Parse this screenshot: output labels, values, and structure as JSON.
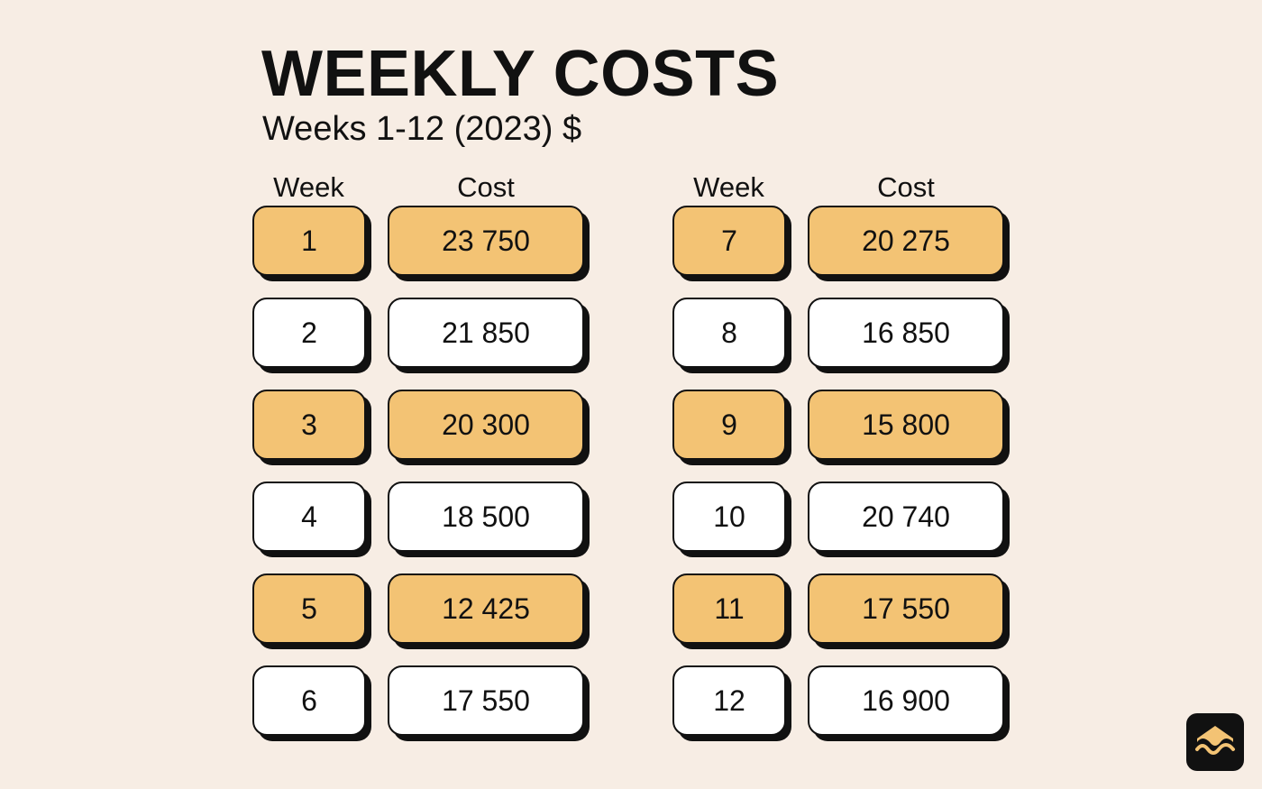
{
  "header": {
    "title": "WEEKLY COSTS",
    "subtitle": "Weeks 1-12 (2023) $"
  },
  "columns": {
    "week": "Week",
    "cost": "Cost"
  },
  "chart_data": {
    "type": "table",
    "title": "WEEKLY COSTS",
    "subtitle": "Weeks 1-12 (2023) $",
    "columns": [
      "Week",
      "Cost"
    ],
    "rows": [
      {
        "week": "1",
        "cost": "23 750",
        "highlight": true
      },
      {
        "week": "2",
        "cost": "21 850",
        "highlight": false
      },
      {
        "week": "3",
        "cost": "20 300",
        "highlight": true
      },
      {
        "week": "4",
        "cost": "18 500",
        "highlight": false
      },
      {
        "week": "5",
        "cost": "12 425",
        "highlight": true
      },
      {
        "week": "6",
        "cost": "17 550",
        "highlight": false
      },
      {
        "week": "7",
        "cost": "20 275",
        "highlight": true
      },
      {
        "week": "8",
        "cost": "16 850",
        "highlight": false
      },
      {
        "week": "9",
        "cost": "15 800",
        "highlight": true
      },
      {
        "week": "10",
        "cost": "20 740",
        "highlight": false
      },
      {
        "week": "11",
        "cost": "17 550",
        "highlight": true
      },
      {
        "week": "12",
        "cost": "16 900",
        "highlight": false
      }
    ],
    "highlight_color": "#f3c374",
    "plain_color": "#ffffff"
  },
  "logo": {
    "icon": "wave-logo-icon"
  }
}
